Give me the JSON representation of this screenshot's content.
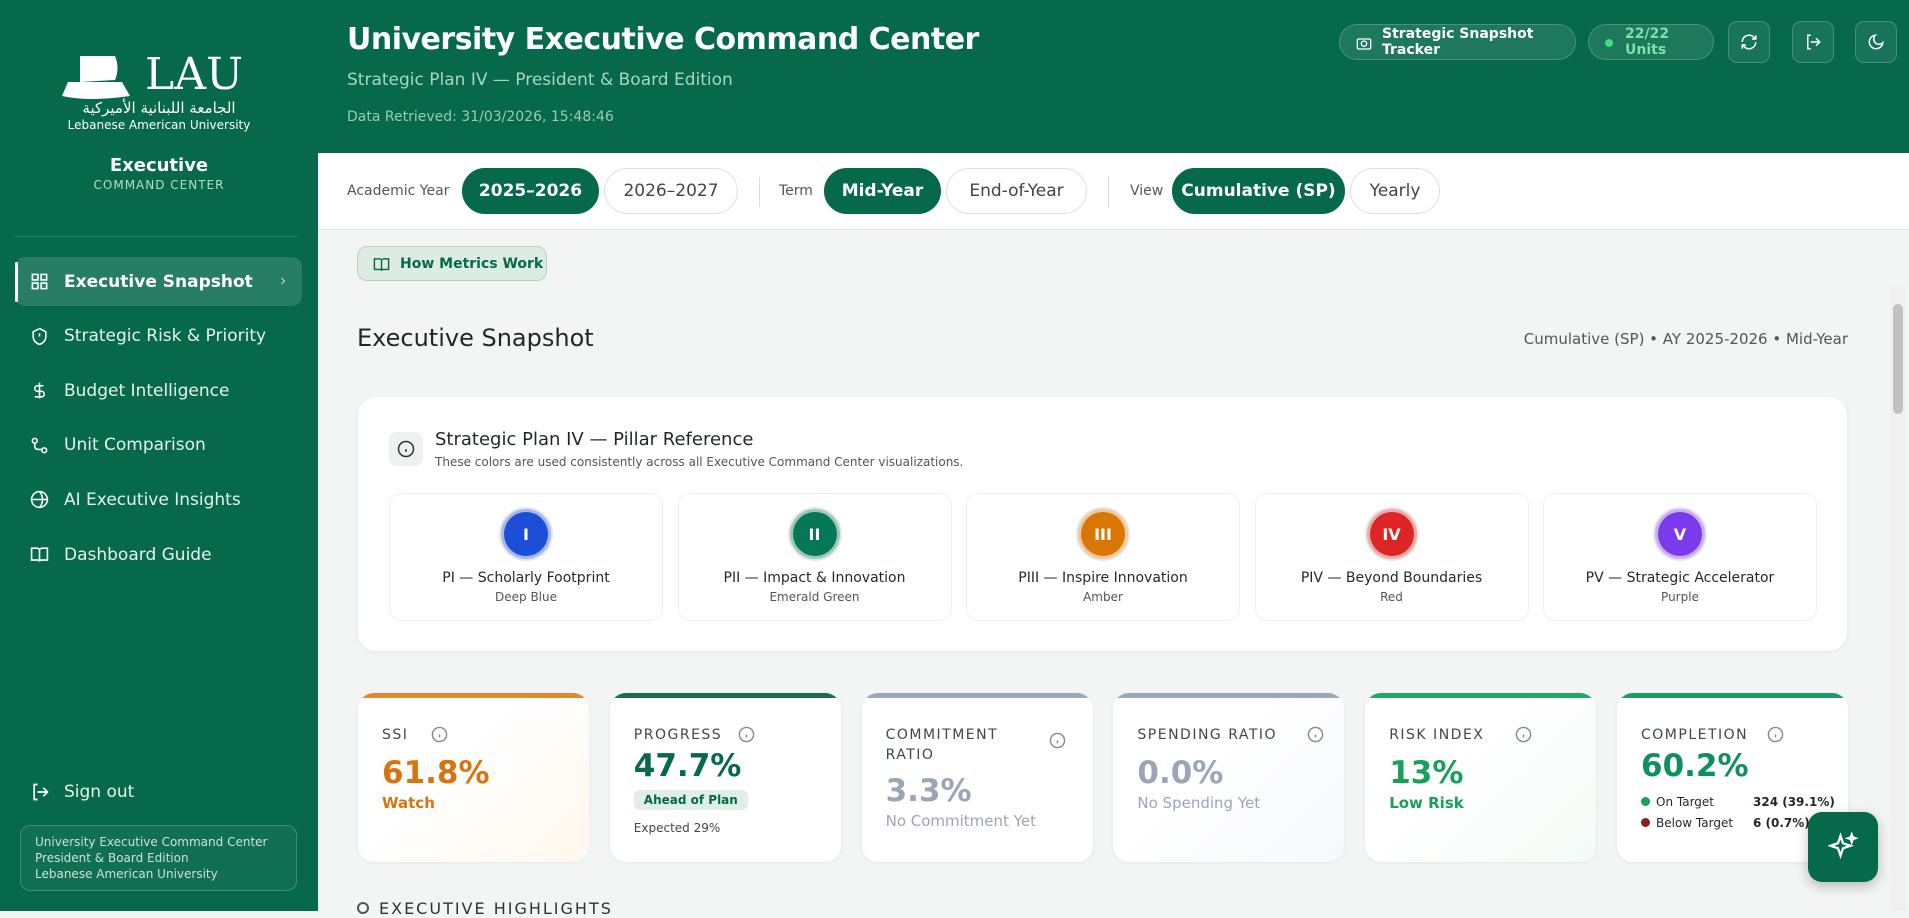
{
  "sidebar": {
    "logo": {
      "mark": "LAU",
      "arabic": "الجامعة اللبنانية الأميركية",
      "name": "Lebanese American University"
    },
    "brand": {
      "title": "Executive",
      "subtitle": "COMMAND CENTER"
    },
    "nav": [
      "Executive Snapshot",
      "Strategic Risk & Priority",
      "Budget Intelligence",
      "Unit Comparison",
      "AI Executive Insights",
      "Dashboard Guide"
    ],
    "sign_out": "Sign out",
    "footer": [
      "University Executive Command Center",
      "President & Board Edition",
      "Lebanese American University"
    ]
  },
  "header": {
    "title": "University Executive Command Center",
    "subtitle": "Strategic Plan IV — President & Board Edition",
    "retrieved": "Data Retrieved: 31/03/2026, 15:48:46",
    "tracker": "Strategic Snapshot Tracker",
    "units": "22/22 Units"
  },
  "filters": {
    "academic_year": {
      "label": "Academic Year",
      "options": [
        "2025–2026",
        "2026–2027"
      ]
    },
    "term": {
      "label": "Term",
      "options": [
        "Mid-Year",
        "End-of-Year"
      ]
    },
    "view": {
      "label": "View",
      "options": [
        "Cumulative (SP)",
        "Yearly"
      ]
    }
  },
  "content": {
    "how_metrics": "How Metrics Work",
    "heading": "Executive Snapshot",
    "context": "Cumulative (SP) • AY 2025-2026 • Mid-Year",
    "pillar_card": {
      "title": "Strategic Plan IV — Pillar Reference",
      "note": "These colors are used consistently across all Executive Command Center visualizations.",
      "pillars": [
        {
          "numeral": "I",
          "name": "PI — Scholarly Footprint",
          "color_name": "Deep Blue"
        },
        {
          "numeral": "II",
          "name": "PII — Impact & Innovation",
          "color_name": "Emerald Green"
        },
        {
          "numeral": "III",
          "name": "PIII — Inspire Innovation",
          "color_name": "Amber"
        },
        {
          "numeral": "IV",
          "name": "PIV — Beyond Boundaries",
          "color_name": "Red"
        },
        {
          "numeral": "V",
          "name": "PV — Strategic Accelerator",
          "color_name": "Purple"
        }
      ]
    },
    "kpis": [
      {
        "label": "SSI",
        "value": "61.8%",
        "status": "Watch"
      },
      {
        "label": "PROGRESS",
        "value": "47.7%",
        "badge": "Ahead of Plan",
        "note": "Expected 29%"
      },
      {
        "label": "COMMITMENT RATIO",
        "value": "3.3%",
        "status": "No Commitment Yet"
      },
      {
        "label": "SPENDING RATIO",
        "value": "0.0%",
        "status": "No Spending Yet"
      },
      {
        "label": "RISK INDEX",
        "value": "13%",
        "status": "Low Risk"
      },
      {
        "label": "COMPLETION",
        "value": "60.2%",
        "rows": [
          {
            "label": "On Target",
            "value": "324 (39.1%)"
          },
          {
            "label": "Below Target",
            "value": "6 (0.7%)"
          }
        ]
      }
    ],
    "next_section": "EXECUTIVE HIGHLIGHTS"
  }
}
